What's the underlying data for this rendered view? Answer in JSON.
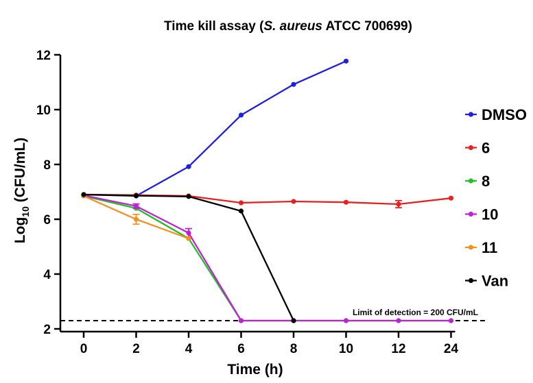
{
  "chart_data": {
    "type": "line",
    "title_main": "Time kill assay (",
    "title_italic": "S. aureus",
    "title_end": " ATCC 700699)",
    "xlabel": "Time (h)",
    "ylabel_prefix": "Log",
    "ylabel_sub": "10",
    "ylabel_suffix": " (CFU/mL)",
    "x": [
      "0",
      "2",
      "4",
      "6",
      "8",
      "10",
      "12",
      "24"
    ],
    "yticks": [
      2,
      4,
      6,
      8,
      10,
      12
    ],
    "ylim": [
      2,
      12
    ],
    "grid": false,
    "legend_position": "right",
    "detection_limit": 2.3,
    "annotation": "Limit of detection = 200 CFU/mL",
    "series": [
      {
        "name": "DMSO",
        "color": "#1f1fe0",
        "values": [
          6.9,
          6.85,
          7.92,
          9.8,
          10.92,
          11.77,
          null,
          null
        ]
      },
      {
        "name": "6",
        "color": "#e82020",
        "values": [
          6.9,
          6.88,
          6.85,
          6.6,
          6.65,
          6.62,
          6.55,
          6.77
        ],
        "errors": [
          0,
          0,
          0,
          0,
          0,
          0,
          0.13,
          0
        ]
      },
      {
        "name": "8",
        "color": "#22c022",
        "values": [
          6.85,
          6.4,
          5.3,
          2.3,
          2.3,
          2.3,
          2.3,
          2.3
        ]
      },
      {
        "name": "10",
        "color": "#c020d8",
        "values": [
          6.87,
          6.48,
          5.5,
          2.3,
          2.3,
          2.3,
          2.3,
          2.3
        ],
        "errors": [
          0,
          0.08,
          0.16,
          0,
          0,
          0,
          0,
          0
        ]
      },
      {
        "name": "11",
        "color": "#f59020",
        "values": [
          6.85,
          6.0,
          5.3,
          null,
          null,
          null,
          null,
          null
        ],
        "errors": [
          0,
          0.18,
          0,
          0,
          0,
          0,
          0,
          0
        ]
      },
      {
        "name": "Van",
        "color": "#000000",
        "values": [
          6.9,
          6.86,
          6.83,
          6.3,
          2.3,
          null,
          null,
          null
        ]
      }
    ]
  }
}
